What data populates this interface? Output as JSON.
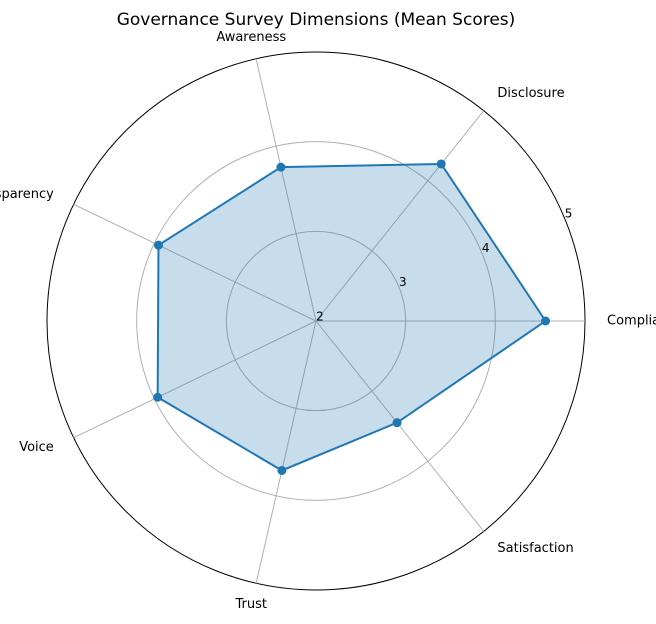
{
  "chart_data": {
    "type": "radar",
    "title": "Governance Survey Dimensions (Mean Scores)",
    "categories": [
      "Compliance",
      "Disclosure",
      "Awareness",
      "Transparency",
      "Voice",
      "Trust",
      "Satisfaction"
    ],
    "values": [
      4.56,
      4.24,
      3.76,
      3.95,
      3.96,
      3.71,
      3.45
    ],
    "color": "#1f77b4",
    "ylim": [
      2,
      5
    ],
    "yticks": [
      2,
      3,
      4,
      5
    ],
    "grid": true
  }
}
